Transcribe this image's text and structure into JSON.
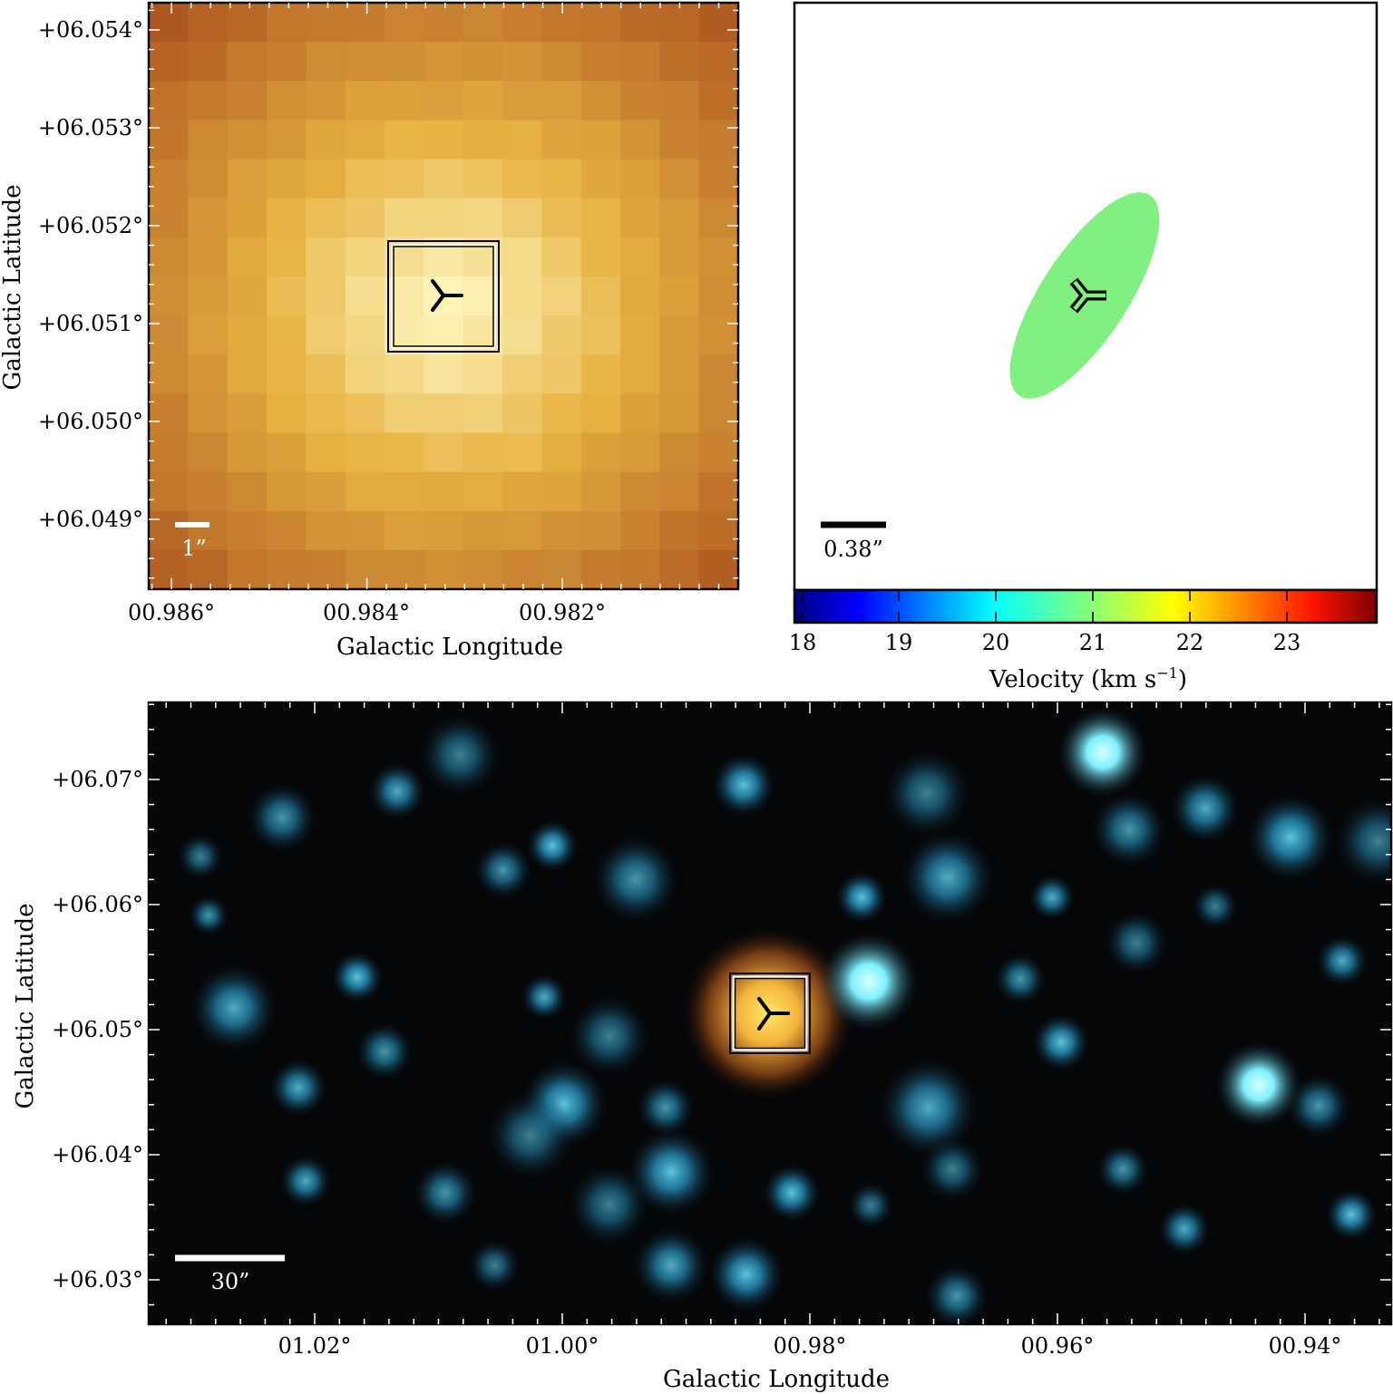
{
  "panel_a": {
    "x_ticks": [
      "00.986°",
      "00.984°",
      "00.982°"
    ],
    "y_ticks": [
      "+06.054°",
      "+06.053°",
      "+06.052°",
      "+06.051°",
      "+06.050°",
      "+06.049°"
    ],
    "xlabel": "Galactic Longitude",
    "ylabel": "Galactic Latitude",
    "scalebar_label": "1”"
  },
  "panel_b": {
    "scalebar_label": "0.38”",
    "colorbar_ticks": [
      "18",
      "19",
      "20",
      "21",
      "22",
      "23"
    ],
    "colorbar_label": "Velocity (km s",
    "colorbar_label_sup": "−1",
    "colorbar_label_end": ")",
    "ellipse_color": "#80f080"
  },
  "panel_c": {
    "x_ticks": [
      "01.02°",
      "01.00°",
      "00.98°",
      "00.96°",
      "00.94°"
    ],
    "y_ticks": [
      "+06.07°",
      "+06.06°",
      "+06.05°",
      "+06.04°",
      "+06.03°"
    ],
    "xlabel": "Galactic Longitude",
    "ylabel": "Galactic Latitude",
    "scalebar_label": "30”"
  }
}
